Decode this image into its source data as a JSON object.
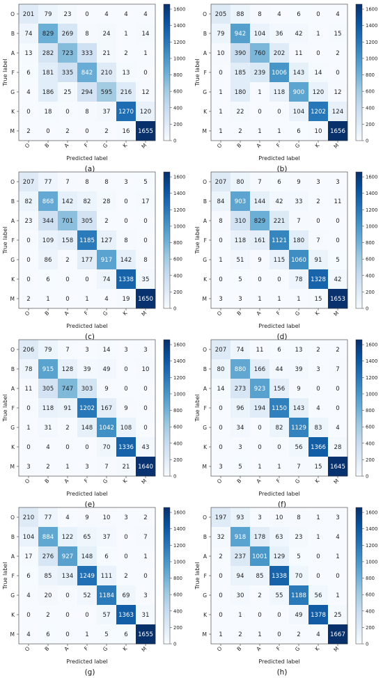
{
  "chart_data": [
    {
      "type": "heatmap",
      "caption": "(a)",
      "xlabel": "Predicted label",
      "ylabel": "True label",
      "x_categories": [
        "O",
        "B",
        "A",
        "F",
        "G",
        "K",
        "M"
      ],
      "y_categories": [
        "O",
        "B",
        "A",
        "F",
        "G",
        "K",
        "M"
      ],
      "colorbar_ticks": [
        0,
        200,
        400,
        600,
        800,
        1000,
        1200,
        1400,
        1600
      ],
      "value_range": [
        0,
        1660
      ],
      "colormap": "Blues",
      "values": [
        [
          201,
          79,
          23,
          0,
          4,
          4,
          4
        ],
        [
          74,
          829,
          269,
          8,
          24,
          1,
          14
        ],
        [
          13,
          282,
          723,
          333,
          21,
          2,
          1
        ],
        [
          6,
          181,
          335,
          842,
          210,
          13,
          0
        ],
        [
          4,
          186,
          25,
          294,
          595,
          216,
          12
        ],
        [
          0,
          18,
          0,
          8,
          37,
          1270,
          120
        ],
        [
          2,
          0,
          2,
          0,
          2,
          16,
          1655
        ]
      ]
    },
    {
      "type": "heatmap",
      "caption": "(b)",
      "xlabel": "Predicted label",
      "ylabel": "True label",
      "x_categories": [
        "O",
        "B",
        "A",
        "F",
        "G",
        "K",
        "M"
      ],
      "y_categories": [
        "O",
        "B",
        "A",
        "F",
        "G",
        "K",
        "M"
      ],
      "colorbar_ticks": [
        0,
        200,
        400,
        600,
        800,
        1000,
        1200,
        1400,
        1600
      ],
      "value_range": [
        0,
        1660
      ],
      "colormap": "Blues",
      "values": [
        [
          205,
          88,
          8,
          4,
          6,
          0,
          4
        ],
        [
          79,
          942,
          104,
          36,
          42,
          1,
          15
        ],
        [
          10,
          390,
          760,
          202,
          11,
          0,
          2
        ],
        [
          0,
          185,
          239,
          1006,
          143,
          14,
          0
        ],
        [
          1,
          180,
          1,
          118,
          900,
          120,
          12
        ],
        [
          1,
          22,
          0,
          0,
          104,
          1202,
          124
        ],
        [
          1,
          2,
          1,
          1,
          6,
          10,
          1656
        ]
      ]
    },
    {
      "type": "heatmap",
      "caption": "(c)",
      "xlabel": "Predicted label",
      "ylabel": "True label",
      "x_categories": [
        "O",
        "B",
        "A",
        "F",
        "G",
        "K",
        "M"
      ],
      "y_categories": [
        "O",
        "B",
        "A",
        "F",
        "G",
        "K",
        "M"
      ],
      "colorbar_ticks": [
        0,
        200,
        400,
        600,
        800,
        1000,
        1200,
        1400,
        1600
      ],
      "value_range": [
        0,
        1660
      ],
      "colormap": "Blues",
      "values": [
        [
          207,
          77,
          7,
          8,
          8,
          3,
          5
        ],
        [
          82,
          868,
          142,
          82,
          28,
          0,
          17
        ],
        [
          23,
          344,
          701,
          305,
          2,
          0,
          0
        ],
        [
          0,
          109,
          158,
          1185,
          127,
          8,
          0
        ],
        [
          0,
          86,
          2,
          177,
          917,
          142,
          8
        ],
        [
          0,
          6,
          0,
          0,
          74,
          1338,
          35
        ],
        [
          2,
          1,
          0,
          1,
          4,
          19,
          1650
        ]
      ]
    },
    {
      "type": "heatmap",
      "caption": "(d)",
      "xlabel": "Predicted label",
      "ylabel": "True label",
      "x_categories": [
        "O",
        "B",
        "A",
        "F",
        "G",
        "K",
        "M"
      ],
      "y_categories": [
        "O",
        "B",
        "A",
        "F",
        "G",
        "K",
        "M"
      ],
      "colorbar_ticks": [
        0,
        200,
        400,
        600,
        800,
        1000,
        1200,
        1400,
        1600
      ],
      "value_range": [
        0,
        1660
      ],
      "colormap": "Blues",
      "values": [
        [
          207,
          80,
          7,
          6,
          9,
          3,
          3
        ],
        [
          84,
          903,
          144,
          42,
          33,
          2,
          11
        ],
        [
          8,
          310,
          829,
          221,
          7,
          0,
          0
        ],
        [
          0,
          118,
          161,
          1121,
          180,
          7,
          0
        ],
        [
          1,
          51,
          9,
          115,
          1060,
          91,
          5
        ],
        [
          0,
          5,
          0,
          0,
          78,
          1328,
          42
        ],
        [
          3,
          3,
          1,
          1,
          1,
          15,
          1653
        ]
      ]
    },
    {
      "type": "heatmap",
      "caption": "(e)",
      "xlabel": "Predicted label",
      "ylabel": "True label",
      "x_categories": [
        "O",
        "B",
        "A",
        "F",
        "G",
        "K",
        "M"
      ],
      "y_categories": [
        "O",
        "B",
        "A",
        "F",
        "G",
        "K",
        "M"
      ],
      "colorbar_ticks": [
        0,
        200,
        400,
        600,
        800,
        1000,
        1200,
        1400,
        1600
      ],
      "value_range": [
        0,
        1660
      ],
      "colormap": "Blues",
      "values": [
        [
          206,
          79,
          7,
          3,
          14,
          3,
          3
        ],
        [
          78,
          915,
          128,
          39,
          49,
          0,
          10
        ],
        [
          11,
          305,
          747,
          303,
          9,
          0,
          0
        ],
        [
          0,
          118,
          91,
          1202,
          167,
          9,
          0
        ],
        [
          1,
          31,
          2,
          148,
          1042,
          108,
          0
        ],
        [
          0,
          4,
          0,
          0,
          70,
          1336,
          43
        ],
        [
          3,
          2,
          1,
          3,
          7,
          21,
          1640
        ]
      ]
    },
    {
      "type": "heatmap",
      "caption": "(f)",
      "xlabel": "Predicted label",
      "ylabel": "True label",
      "x_categories": [
        "O",
        "B",
        "A",
        "F",
        "G",
        "K",
        "M"
      ],
      "y_categories": [
        "O",
        "B",
        "A",
        "F",
        "G",
        "K",
        "M"
      ],
      "colorbar_ticks": [
        0,
        200,
        400,
        600,
        800,
        1000,
        1200,
        1400,
        1600
      ],
      "value_range": [
        0,
        1660
      ],
      "colormap": "Blues",
      "values": [
        [
          207,
          74,
          11,
          6,
          13,
          2,
          2
        ],
        [
          80,
          880,
          166,
          44,
          39,
          3,
          7
        ],
        [
          14,
          273,
          923,
          156,
          9,
          0,
          0
        ],
        [
          0,
          96,
          194,
          1150,
          143,
          4,
          0
        ],
        [
          0,
          34,
          0,
          82,
          1129,
          83,
          4
        ],
        [
          0,
          3,
          0,
          0,
          56,
          1366,
          28
        ],
        [
          3,
          5,
          1,
          1,
          7,
          15,
          1645
        ]
      ]
    },
    {
      "type": "heatmap",
      "caption": "(g)",
      "xlabel": "Predicted label",
      "ylabel": "True label",
      "x_categories": [
        "O",
        "B",
        "A",
        "F",
        "G",
        "K",
        "M"
      ],
      "y_categories": [
        "O",
        "B",
        "A",
        "F",
        "G",
        "K",
        "M"
      ],
      "colorbar_ticks": [
        0,
        200,
        400,
        600,
        800,
        1000,
        1200,
        1400,
        1600
      ],
      "value_range": [
        0,
        1660
      ],
      "colormap": "Blues",
      "values": [
        [
          210,
          77,
          4,
          9,
          10,
          3,
          2
        ],
        [
          104,
          884,
          122,
          65,
          37,
          0,
          7
        ],
        [
          17,
          276,
          927,
          148,
          6,
          0,
          1
        ],
        [
          6,
          85,
          134,
          1249,
          111,
          2,
          0
        ],
        [
          4,
          20,
          0,
          52,
          1184,
          69,
          3
        ],
        [
          0,
          2,
          0,
          0,
          57,
          1363,
          31
        ],
        [
          4,
          6,
          0,
          1,
          5,
          6,
          1655
        ]
      ]
    },
    {
      "type": "heatmap",
      "caption": "(h)",
      "xlabel": "Predicted label",
      "ylabel": "True label",
      "x_categories": [
        "O",
        "B",
        "A",
        "F",
        "G",
        "K",
        "M"
      ],
      "y_categories": [
        "O",
        "B",
        "A",
        "F",
        "G",
        "K",
        "M"
      ],
      "colorbar_ticks": [
        0,
        200,
        400,
        600,
        800,
        1000,
        1200,
        1400,
        1600
      ],
      "value_range": [
        0,
        1660
      ],
      "colormap": "Blues",
      "values": [
        [
          197,
          93,
          3,
          10,
          8,
          1,
          3
        ],
        [
          32,
          918,
          178,
          63,
          23,
          1,
          4
        ],
        [
          2,
          237,
          1001,
          129,
          5,
          0,
          1
        ],
        [
          0,
          94,
          85,
          1338,
          70,
          0,
          0
        ],
        [
          0,
          30,
          2,
          55,
          1188,
          56,
          1
        ],
        [
          0,
          1,
          0,
          0,
          49,
          1378,
          25
        ],
        [
          1,
          2,
          1,
          0,
          2,
          4,
          1667
        ]
      ]
    }
  ]
}
